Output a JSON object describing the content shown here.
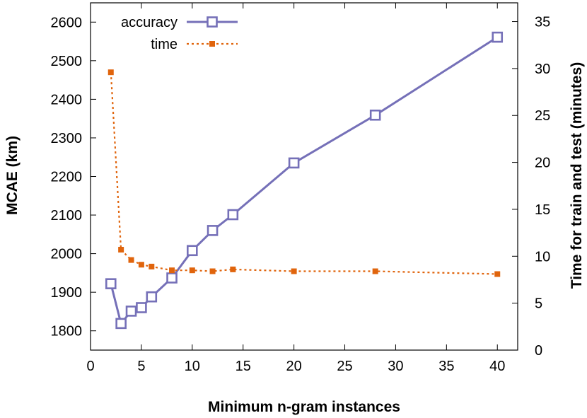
{
  "chart_data": {
    "type": "line",
    "title": "",
    "xlabel": "Minimum n-gram instances",
    "ylabel_left": "MCAE (km)",
    "ylabel_right": "Time for train and test (minutes)",
    "xlim": [
      0,
      42
    ],
    "ylim_left": [
      1750,
      2650
    ],
    "ylim_right": [
      0,
      37
    ],
    "x_ticks": [
      0,
      5,
      10,
      15,
      20,
      25,
      30,
      35,
      40
    ],
    "y_ticks_left": [
      1800,
      1900,
      2000,
      2100,
      2200,
      2300,
      2400,
      2500,
      2600
    ],
    "y_ticks_right": [
      0,
      5,
      10,
      15,
      20,
      25,
      30,
      35
    ],
    "grid": false,
    "legend_position": "top-left",
    "series": [
      {
        "name": "accuracy",
        "axis": "left",
        "color": "#7570b8",
        "marker": "open-square",
        "line_style": "solid",
        "x": [
          2,
          3,
          4,
          5,
          6,
          8,
          10,
          12,
          14,
          20,
          28,
          40
        ],
        "y": [
          1922,
          1819,
          1851,
          1860,
          1888,
          1937,
          2008,
          2060,
          2101,
          2235,
          2359,
          2561
        ]
      },
      {
        "name": "time",
        "axis": "right",
        "color": "#e0640c",
        "marker": "filled-square",
        "line_style": "dotted",
        "x": [
          2,
          3,
          4,
          5,
          6,
          8,
          10,
          12,
          14,
          20,
          28,
          40
        ],
        "y": [
          29.6,
          10.7,
          9.6,
          9.1,
          8.9,
          8.5,
          8.5,
          8.4,
          8.6,
          8.4,
          8.4,
          8.1
        ]
      }
    ]
  }
}
